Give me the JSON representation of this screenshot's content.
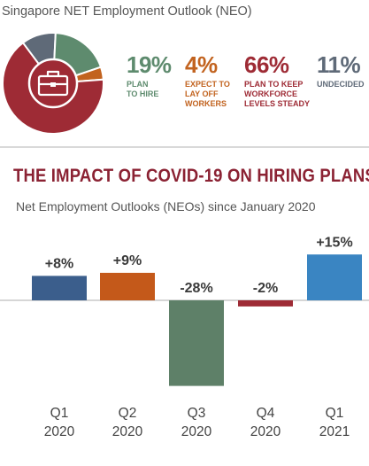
{
  "outlook": {
    "title": "Singapore NET Employment Outlook (NEO)",
    "stats": [
      {
        "pct": "19%",
        "label_lines": [
          "PLAN",
          "TO HIRE"
        ],
        "value": 19,
        "color": "#5e8b6e"
      },
      {
        "pct": "4%",
        "label_lines": [
          "EXPECT TO",
          "LAY OFF",
          "WORKERS"
        ],
        "value": 4,
        "color": "#c2631f"
      },
      {
        "pct": "66%",
        "label_lines": [
          "PLAN TO KEEP",
          "WORKFORCE",
          "LEVELS STEADY"
        ],
        "value": 66,
        "color": "#9e2b35"
      },
      {
        "pct": "11%",
        "label_lines": [
          "UNDECIDED"
        ],
        "value": 11,
        "color": "#5f6a78"
      }
    ],
    "icon": "briefcase-icon"
  },
  "impact": {
    "title": "THE IMPACT OF COVID-19 ON HIRING PLANS",
    "subtitle": "Net Employment Outlooks (NEOs) since January 2020"
  },
  "chart_data": [
    {
      "type": "pie",
      "labels": [
        "PLAN TO HIRE",
        "EXPECT TO LAY OFF WORKERS",
        "PLAN TO KEEP WORKFORCE LEVELS STEADY",
        "UNDECIDED"
      ],
      "values": [
        19,
        4,
        66,
        11
      ],
      "colors": [
        "#5e8b6e",
        "#c2631f",
        "#9e2b35",
        "#5f6a78"
      ],
      "donut": true
    },
    {
      "type": "bar",
      "categories": [
        [
          "Q1",
          "2020"
        ],
        [
          "Q2",
          "2020"
        ],
        [
          "Q3",
          "2020"
        ],
        [
          "Q4",
          "2020"
        ],
        [
          "Q1",
          "2021"
        ]
      ],
      "values": [
        8,
        9,
        -28,
        -2,
        15
      ],
      "value_labels": [
        "+8%",
        "+9%",
        "-28%",
        "-2%",
        "+15%"
      ],
      "colors": [
        "#3b5e8c",
        "#c4591a",
        "#5e8068",
        "#9e2b35",
        "#3a85c2"
      ]
    }
  ]
}
